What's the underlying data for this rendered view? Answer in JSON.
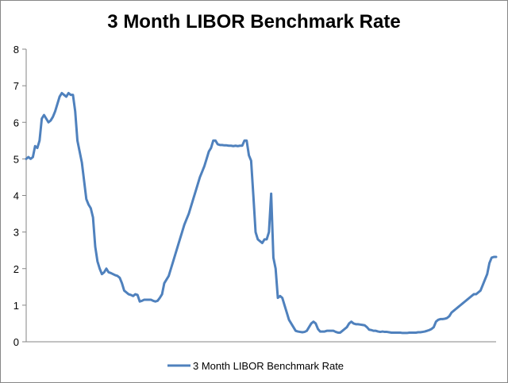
{
  "chart_data": {
    "type": "line",
    "title": "3 Month LIBOR Benchmark Rate",
    "xlabel": "",
    "ylabel": "",
    "ylim": [
      0,
      8
    ],
    "yticks": [
      0,
      1,
      2,
      3,
      4,
      5,
      6,
      7,
      8
    ],
    "grid": false,
    "legend": "bottom",
    "series": [
      {
        "name": "3 Month LIBOR Benchmark Rate",
        "color": "#4F81BD",
        "values": [
          5.0,
          5.05,
          5.0,
          5.05,
          5.35,
          5.3,
          5.5,
          6.1,
          6.2,
          6.1,
          6.0,
          6.05,
          6.15,
          6.3,
          6.5,
          6.7,
          6.8,
          6.75,
          6.7,
          6.8,
          6.75,
          6.75,
          6.3,
          5.5,
          5.2,
          4.9,
          4.4,
          3.9,
          3.75,
          3.65,
          3.4,
          2.6,
          2.2,
          2.0,
          1.85,
          1.9,
          2.0,
          1.9,
          1.88,
          1.85,
          1.82,
          1.8,
          1.75,
          1.6,
          1.4,
          1.35,
          1.3,
          1.28,
          1.25,
          1.3,
          1.28,
          1.1,
          1.12,
          1.15,
          1.15,
          1.15,
          1.15,
          1.12,
          1.1,
          1.12,
          1.2,
          1.3,
          1.6,
          1.7,
          1.8,
          2.0,
          2.2,
          2.4,
          2.6,
          2.8,
          3.0,
          3.2,
          3.35,
          3.5,
          3.7,
          3.9,
          4.1,
          4.3,
          4.5,
          4.65,
          4.8,
          5.0,
          5.2,
          5.3,
          5.5,
          5.5,
          5.4,
          5.38,
          5.38,
          5.37,
          5.37,
          5.36,
          5.36,
          5.35,
          5.36,
          5.35,
          5.36,
          5.36,
          5.5,
          5.5,
          5.1,
          4.95,
          4.0,
          3.0,
          2.8,
          2.75,
          2.7,
          2.8,
          2.8,
          3.0,
          4.05,
          2.3,
          2.0,
          1.2,
          1.25,
          1.2,
          1.0,
          0.8,
          0.6,
          0.5,
          0.4,
          0.3,
          0.28,
          0.27,
          0.26,
          0.27,
          0.3,
          0.4,
          0.5,
          0.55,
          0.5,
          0.35,
          0.28,
          0.28,
          0.28,
          0.3,
          0.3,
          0.3,
          0.3,
          0.27,
          0.25,
          0.25,
          0.3,
          0.35,
          0.4,
          0.5,
          0.55,
          0.5,
          0.48,
          0.48,
          0.47,
          0.46,
          0.45,
          0.4,
          0.33,
          0.32,
          0.3,
          0.3,
          0.28,
          0.27,
          0.28,
          0.27,
          0.27,
          0.26,
          0.25,
          0.25,
          0.25,
          0.25,
          0.25,
          0.24,
          0.24,
          0.24,
          0.25,
          0.25,
          0.25,
          0.25,
          0.26,
          0.26,
          0.27,
          0.28,
          0.3,
          0.32,
          0.35,
          0.4,
          0.55,
          0.6,
          0.62,
          0.62,
          0.63,
          0.65,
          0.7,
          0.8,
          0.85,
          0.9,
          0.95,
          1.0,
          1.05,
          1.1,
          1.15,
          1.2,
          1.25,
          1.3,
          1.3,
          1.35,
          1.4,
          1.55,
          1.7,
          1.85,
          2.15,
          2.3,
          2.32,
          2.32
        ]
      }
    ]
  }
}
